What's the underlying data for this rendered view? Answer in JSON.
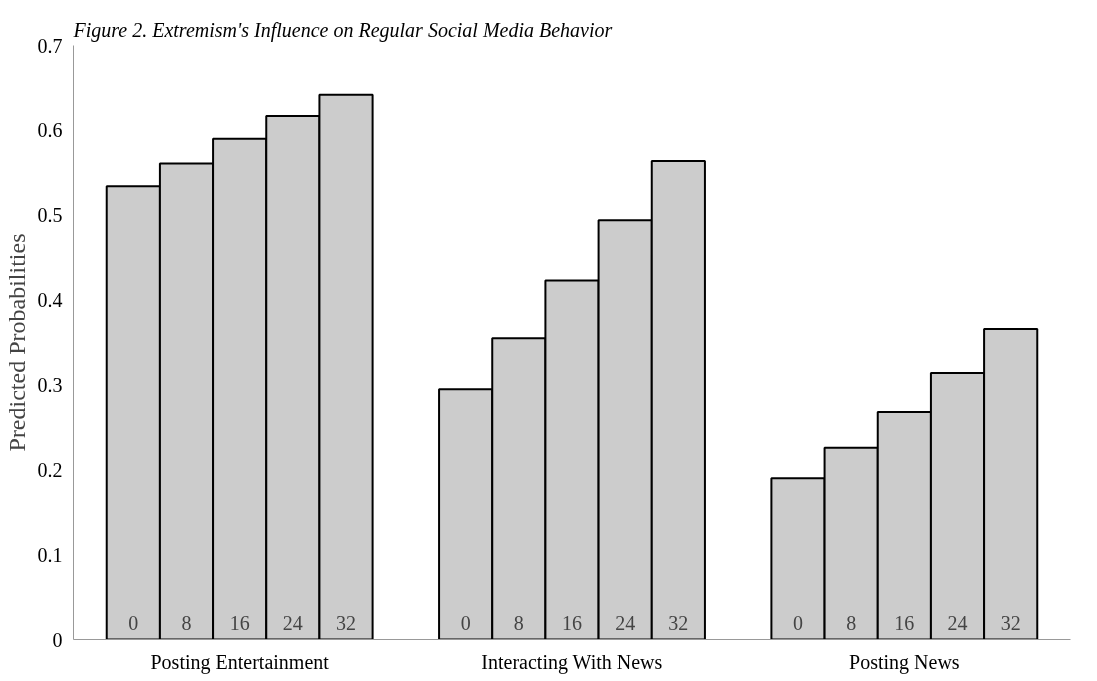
{
  "chart_data": {
    "type": "bar",
    "title": "Figure 2. Extremism's Influence on Regular Social Media Behavior",
    "ylabel": "Predicted Probabilities",
    "categories": [
      "Posting Entertainment",
      "Interacting With News",
      "Posting News"
    ],
    "series": [
      {
        "name": "0",
        "color": "#cccccc",
        "values": [
          0.534,
          0.295,
          0.19
        ]
      },
      {
        "name": "8",
        "color": "#cccccc",
        "values": [
          0.561,
          0.355,
          0.226
        ]
      },
      {
        "name": "16",
        "color": "#cccccc",
        "values": [
          0.59,
          0.423,
          0.268
        ]
      },
      {
        "name": "24",
        "color": "#cccccc",
        "values": [
          0.617,
          0.494,
          0.314
        ]
      },
      {
        "name": "32",
        "color": "#cccccc",
        "values": [
          0.642,
          0.564,
          0.366
        ]
      }
    ],
    "ylim": [
      0,
      0.7
    ],
    "yticks": [
      0,
      0.1,
      0.2,
      0.3,
      0.4,
      0.5,
      0.6,
      0.7
    ],
    "grid": false
  }
}
